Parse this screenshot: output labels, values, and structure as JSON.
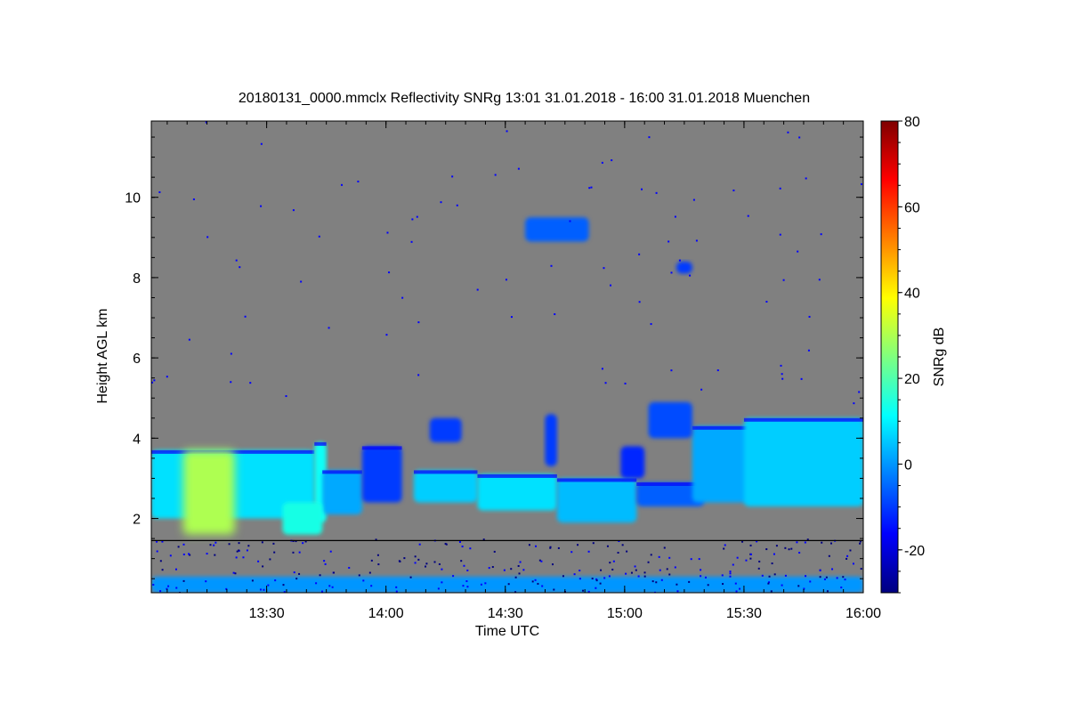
{
  "chart_data": {
    "type": "heatmap",
    "title": "20180131_0000.mmclx Reflectivity SNRg   13:01 31.01.2018 - 16:00 31.01.2018 Muenchen",
    "xlabel": "Time UTC",
    "ylabel": "Height AGL km",
    "x_range_minutes": [
      781,
      960
    ],
    "x_ticks": [
      {
        "minute": 810,
        "label": "13:30"
      },
      {
        "minute": 840,
        "label": "14:00"
      },
      {
        "minute": 870,
        "label": "14:30"
      },
      {
        "minute": 900,
        "label": "15:00"
      },
      {
        "minute": 930,
        "label": "15:30"
      },
      {
        "minute": 960,
        "label": "16:00"
      }
    ],
    "y_range_km": [
      0.15,
      11.9
    ],
    "y_ticks": [
      2,
      4,
      6,
      8,
      10
    ],
    "colorbar": {
      "label": "SNRg dB",
      "range": [
        -30,
        80
      ],
      "ticks": [
        -20,
        0,
        20,
        40,
        60,
        80
      ]
    },
    "background_color": "#808080",
    "colormap": [
      "#00007f",
      "#0000ff",
      "#007fff",
      "#00ffff",
      "#7fff7f",
      "#ffff00",
      "#ff7f00",
      "#ff0000",
      "#7f0000"
    ],
    "reference_line_km": 1.45,
    "cloud_regions": [
      {
        "x": [
          781,
          822
        ],
        "top_km": 3.7,
        "base_km": 2.0,
        "snr_db": 8
      },
      {
        "x": [
          822,
          825
        ],
        "top_km": 3.9,
        "base_km": 1.9,
        "snr_db": 12
      },
      {
        "x": [
          824,
          834
        ],
        "top_km": 3.2,
        "base_km": 2.1,
        "snr_db": 2
      },
      {
        "x": [
          834,
          844
        ],
        "top_km": 3.8,
        "base_km": 2.4,
        "snr_db": -10
      },
      {
        "x": [
          847,
          863
        ],
        "top_km": 3.2,
        "base_km": 2.4,
        "snr_db": 6
      },
      {
        "x": [
          863,
          883
        ],
        "top_km": 3.1,
        "base_km": 2.2,
        "snr_db": 8
      },
      {
        "x": [
          883,
          903
        ],
        "top_km": 3.0,
        "base_km": 1.9,
        "snr_db": 4
      },
      {
        "x": [
          903,
          920
        ],
        "top_km": 2.9,
        "base_km": 2.3,
        "snr_db": -6
      },
      {
        "x": [
          917,
          932
        ],
        "top_km": 4.3,
        "base_km": 2.4,
        "snr_db": 2
      },
      {
        "x": [
          930,
          960
        ],
        "top_km": 4.5,
        "base_km": 2.3,
        "snr_db": 6
      },
      {
        "x": [
          789,
          802
        ],
        "top_km": 3.7,
        "base_km": 1.6,
        "snr_db": 30
      },
      {
        "x": [
          814,
          824
        ],
        "top_km": 2.4,
        "base_km": 1.6,
        "snr_db": 14
      },
      {
        "x": [
          851,
          859
        ],
        "top_km": 4.5,
        "base_km": 3.9,
        "snr_db": -10
      },
      {
        "x": [
          880,
          883
        ],
        "top_km": 4.6,
        "base_km": 3.3,
        "snr_db": -10
      },
      {
        "x": [
          906,
          917
        ],
        "top_km": 4.9,
        "base_km": 4.0,
        "snr_db": -8
      },
      {
        "x": [
          899,
          905
        ],
        "top_km": 3.8,
        "base_km": 3.0,
        "snr_db": -12
      },
      {
        "x": [
          875,
          891
        ],
        "top_km": 9.5,
        "base_km": 8.9,
        "snr_db": -6
      },
      {
        "x": [
          913,
          917
        ],
        "top_km": 8.4,
        "base_km": 8.1,
        "snr_db": -10
      },
      {
        "x": [
          781,
          960
        ],
        "top_km": 0.55,
        "base_km": 0.15,
        "snr_db": 0
      }
    ]
  }
}
